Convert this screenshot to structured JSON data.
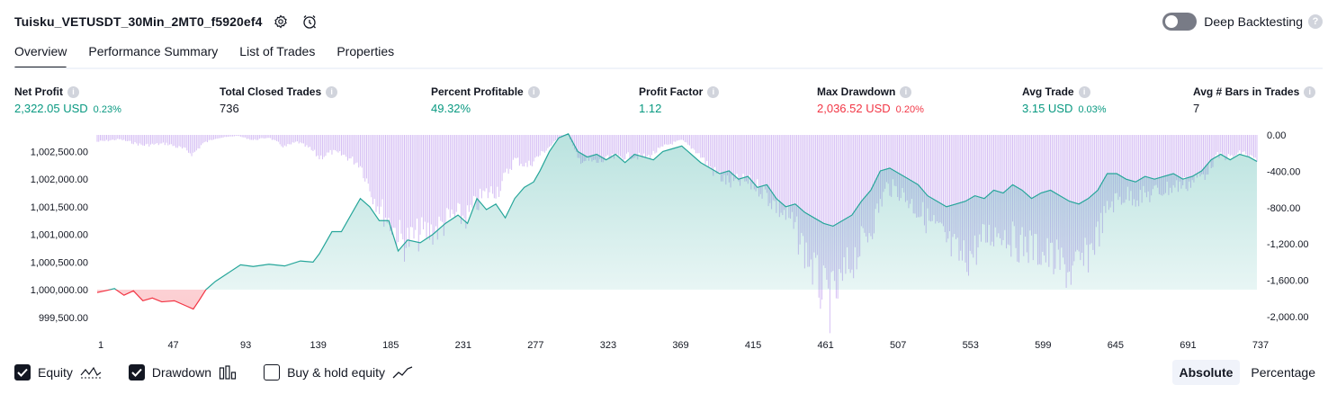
{
  "header": {
    "title": "Tuisku_VETUSDT_30Min_2MT0_f5920ef4",
    "deep_backtesting_label": "Deep Backtesting",
    "help_glyph": "?"
  },
  "tabs": [
    {
      "label": "Overview",
      "active": true
    },
    {
      "label": "Performance Summary",
      "active": false
    },
    {
      "label": "List of Trades",
      "active": false
    },
    {
      "label": "Properties",
      "active": false
    }
  ],
  "stats": [
    {
      "label": "Net Profit",
      "value": "2,322.05 USD",
      "pct": "0.23%",
      "color": "#089981"
    },
    {
      "label": "Total Closed Trades",
      "value": "736",
      "pct": "",
      "color": "#131722"
    },
    {
      "label": "Percent Profitable",
      "value": "49.32%",
      "pct": "",
      "color": "#089981"
    },
    {
      "label": "Profit Factor",
      "value": "1.12",
      "pct": "",
      "color": "#089981"
    },
    {
      "label": "Max Drawdown",
      "value": "2,036.52 USD",
      "pct": "0.20%",
      "color": "#f23645"
    },
    {
      "label": "Avg Trade",
      "value": "3.15 USD",
      "pct": "0.03%",
      "color": "#089981"
    },
    {
      "label": "Avg # Bars in Trades",
      "value": "7",
      "pct": "",
      "color": "#131722"
    }
  ],
  "info_glyph": "i",
  "chart_data": {
    "type": "area",
    "initial_capital": 1000000,
    "left_axis": {
      "ticks": [
        "1,002,500.00",
        "1,002,000.00",
        "1,001,500.00",
        "1,001,000.00",
        "1,000,500.00",
        "1,000,000.00",
        "999,500.00"
      ],
      "ylim": [
        999350,
        1002800
      ]
    },
    "right_axis": {
      "ticks": [
        "0.00",
        "-400.00",
        "-800.00",
        "-1,200.00",
        "-1,600.00",
        "-2,000.00"
      ],
      "ylim": [
        -2100,
        0
      ]
    },
    "x_ticks": [
      "1",
      "47",
      "93",
      "139",
      "185",
      "231",
      "277",
      "323",
      "369",
      "415",
      "461",
      "507",
      "553",
      "599",
      "645",
      "691",
      "737"
    ],
    "xlim": [
      1,
      737
    ],
    "series": [
      {
        "name": "Equity",
        "profit_color": "#26a69a",
        "loss_color": "#f23645",
        "points": [
          [
            1,
            999950
          ],
          [
            6,
            999980
          ],
          [
            12,
            1000020
          ],
          [
            18,
            999900
          ],
          [
            24,
            999980
          ],
          [
            30,
            999800
          ],
          [
            36,
            999850
          ],
          [
            42,
            999780
          ],
          [
            50,
            999800
          ],
          [
            58,
            999700
          ],
          [
            62,
            999650
          ],
          [
            66,
            999820
          ],
          [
            70,
            1000000
          ],
          [
            76,
            1000150
          ],
          [
            84,
            1000300
          ],
          [
            92,
            1000450
          ],
          [
            100,
            1000420
          ],
          [
            110,
            1000460
          ],
          [
            120,
            1000430
          ],
          [
            130,
            1000520
          ],
          [
            138,
            1000500
          ],
          [
            142,
            1000650
          ],
          [
            150,
            1001050
          ],
          [
            156,
            1001050
          ],
          [
            162,
            1001350
          ],
          [
            168,
            1001650
          ],
          [
            174,
            1001500
          ],
          [
            180,
            1001250
          ],
          [
            186,
            1001250
          ],
          [
            192,
            1000700
          ],
          [
            198,
            1000900
          ],
          [
            206,
            1000850
          ],
          [
            214,
            1001000
          ],
          [
            222,
            1001200
          ],
          [
            230,
            1001350
          ],
          [
            236,
            1001200
          ],
          [
            242,
            1001650
          ],
          [
            248,
            1001450
          ],
          [
            254,
            1001550
          ],
          [
            260,
            1001300
          ],
          [
            266,
            1001650
          ],
          [
            272,
            1001850
          ],
          [
            278,
            1001950
          ],
          [
            282,
            1002150
          ],
          [
            288,
            1002500
          ],
          [
            294,
            1002750
          ],
          [
            300,
            1002820
          ],
          [
            306,
            1002500
          ],
          [
            312,
            1002400
          ],
          [
            318,
            1002450
          ],
          [
            324,
            1002350
          ],
          [
            330,
            1002450
          ],
          [
            336,
            1002300
          ],
          [
            342,
            1002450
          ],
          [
            348,
            1002400
          ],
          [
            354,
            1002350
          ],
          [
            360,
            1002500
          ],
          [
            366,
            1002550
          ],
          [
            372,
            1002600
          ],
          [
            378,
            1002450
          ],
          [
            384,
            1002300
          ],
          [
            390,
            1002200
          ],
          [
            396,
            1002100
          ],
          [
            402,
            1002150
          ],
          [
            408,
            1002000
          ],
          [
            414,
            1002050
          ],
          [
            420,
            1001850
          ],
          [
            426,
            1001900
          ],
          [
            432,
            1001650
          ],
          [
            438,
            1001500
          ],
          [
            444,
            1001550
          ],
          [
            450,
            1001400
          ],
          [
            456,
            1001300
          ],
          [
            462,
            1001200
          ],
          [
            468,
            1001150
          ],
          [
            474,
            1001250
          ],
          [
            480,
            1001350
          ],
          [
            486,
            1001600
          ],
          [
            492,
            1001800
          ],
          [
            498,
            1002150
          ],
          [
            504,
            1002200
          ],
          [
            510,
            1002100
          ],
          [
            516,
            1002000
          ],
          [
            522,
            1001900
          ],
          [
            528,
            1001700
          ],
          [
            534,
            1001600
          ],
          [
            540,
            1001500
          ],
          [
            546,
            1001550
          ],
          [
            552,
            1001600
          ],
          [
            558,
            1001700
          ],
          [
            564,
            1001650
          ],
          [
            570,
            1001800
          ],
          [
            576,
            1001750
          ],
          [
            582,
            1001900
          ],
          [
            588,
            1001800
          ],
          [
            594,
            1001650
          ],
          [
            600,
            1001750
          ],
          [
            606,
            1001800
          ],
          [
            612,
            1001700
          ],
          [
            618,
            1001600
          ],
          [
            624,
            1001550
          ],
          [
            630,
            1001650
          ],
          [
            636,
            1001800
          ],
          [
            642,
            1002100
          ],
          [
            648,
            1002100
          ],
          [
            654,
            1002000
          ],
          [
            660,
            1001950
          ],
          [
            666,
            1002050
          ],
          [
            672,
            1002000
          ],
          [
            678,
            1002050
          ],
          [
            684,
            1002100
          ],
          [
            690,
            1002000
          ],
          [
            696,
            1002050
          ],
          [
            702,
            1002150
          ],
          [
            708,
            1002350
          ],
          [
            714,
            1002450
          ],
          [
            720,
            1002350
          ],
          [
            726,
            1002450
          ],
          [
            732,
            1002400
          ],
          [
            737,
            1002320
          ]
        ]
      },
      {
        "name": "Drawdown",
        "color": "#b388eb",
        "points": [
          [
            1,
            -80
          ],
          [
            15,
            -50
          ],
          [
            30,
            -120
          ],
          [
            45,
            -100
          ],
          [
            55,
            -160
          ],
          [
            62,
            -220
          ],
          [
            68,
            -100
          ],
          [
            76,
            -40
          ],
          [
            90,
            -10
          ],
          [
            100,
            -60
          ],
          [
            110,
            -30
          ],
          [
            120,
            -140
          ],
          [
            128,
            -80
          ],
          [
            136,
            -160
          ],
          [
            142,
            -260
          ],
          [
            150,
            -200
          ],
          [
            158,
            -240
          ],
          [
            168,
            -340
          ],
          [
            176,
            -700
          ],
          [
            186,
            -1000
          ],
          [
            196,
            -1250
          ],
          [
            206,
            -1150
          ],
          [
            216,
            -1100
          ],
          [
            226,
            -950
          ],
          [
            236,
            -950
          ],
          [
            246,
            -700
          ],
          [
            256,
            -620
          ],
          [
            266,
            -280
          ],
          [
            274,
            -360
          ],
          [
            284,
            -200
          ],
          [
            294,
            -40
          ],
          [
            300,
            0
          ],
          [
            306,
            -280
          ],
          [
            318,
            -320
          ],
          [
            330,
            -260
          ],
          [
            340,
            -240
          ],
          [
            350,
            -260
          ],
          [
            362,
            -120
          ],
          [
            372,
            -60
          ],
          [
            382,
            -200
          ],
          [
            392,
            -420
          ],
          [
            402,
            -560
          ],
          [
            412,
            -540
          ],
          [
            422,
            -620
          ],
          [
            432,
            -820
          ],
          [
            440,
            -980
          ],
          [
            448,
            -1250
          ],
          [
            454,
            -1500
          ],
          [
            460,
            -1780
          ],
          [
            466,
            -1950
          ],
          [
            472,
            -1800
          ],
          [
            478,
            -1520
          ],
          [
            486,
            -1280
          ],
          [
            494,
            -1000
          ],
          [
            502,
            -600
          ],
          [
            510,
            -650
          ],
          [
            518,
            -800
          ],
          [
            526,
            -950
          ],
          [
            534,
            -1100
          ],
          [
            542,
            -1300
          ],
          [
            550,
            -1450
          ],
          [
            556,
            -1380
          ],
          [
            564,
            -1200
          ],
          [
            574,
            -1100
          ],
          [
            584,
            -1250
          ],
          [
            594,
            -1300
          ],
          [
            604,
            -1400
          ],
          [
            612,
            -1500
          ],
          [
            620,
            -1600
          ],
          [
            628,
            -1450
          ],
          [
            636,
            -1150
          ],
          [
            644,
            -800
          ],
          [
            654,
            -700
          ],
          [
            664,
            -720
          ],
          [
            674,
            -660
          ],
          [
            684,
            -600
          ],
          [
            694,
            -560
          ],
          [
            704,
            -450
          ],
          [
            712,
            -240
          ],
          [
            720,
            -260
          ],
          [
            728,
            -200
          ],
          [
            737,
            -300
          ]
        ]
      },
      {
        "name": "Buy & hold equity",
        "visible": false
      }
    ]
  },
  "footer": {
    "equity_label": "Equity",
    "drawdown_label": "Drawdown",
    "buyhold_label": "Buy & hold equity",
    "absolute_label": "Absolute",
    "percentage_label": "Percentage"
  }
}
